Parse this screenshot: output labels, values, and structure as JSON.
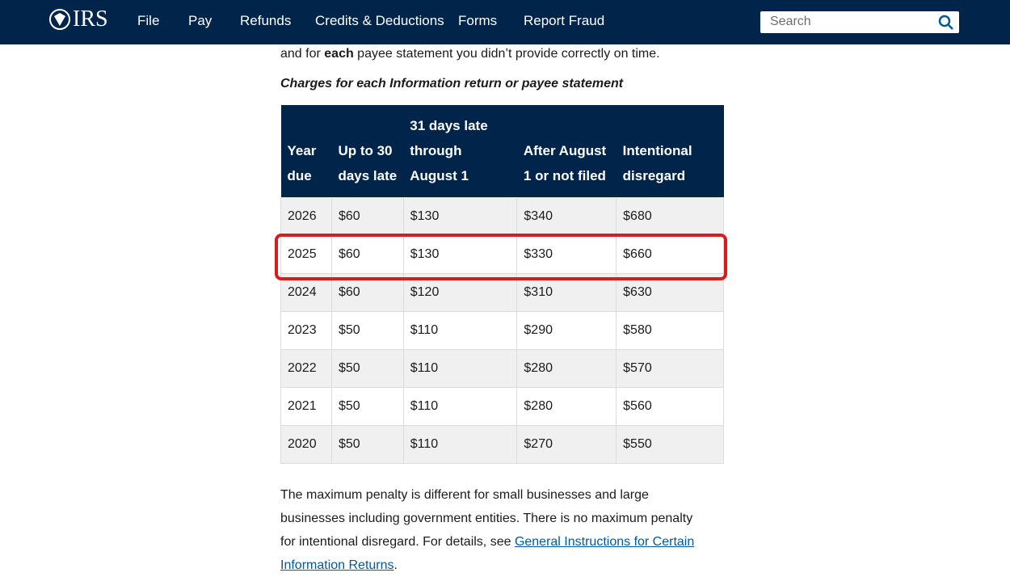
{
  "nav": {
    "logo": "IRS",
    "links": [
      "File",
      "Pay",
      "Refunds",
      "Credits & Deductions",
      "Forms",
      "Report Fraud"
    ],
    "search_placeholder": "Search"
  },
  "intro": {
    "before": "and for ",
    "bold": "each",
    "after": " payee statement you didn’t provide correctly on time."
  },
  "caption": "Charges for each Information return or payee statement",
  "table": {
    "header": [
      "Year due",
      "Up to 30 days late",
      "31 days late through August 1",
      "After August 1 or not filed",
      "Intentional disregard"
    ],
    "rows": [
      [
        "2026",
        "$60",
        "$130",
        "$340",
        "$680"
      ],
      [
        "2025",
        "$60",
        "$130",
        "$330",
        "$660"
      ],
      [
        "2024",
        "$60",
        "$120",
        "$310",
        "$630"
      ],
      [
        "2023",
        "$50",
        "$110",
        "$290",
        "$580"
      ],
      [
        "2022",
        "$50",
        "$110",
        "$280",
        "$570"
      ],
      [
        "2021",
        "$50",
        "$110",
        "$280",
        "$560"
      ],
      [
        "2020",
        "$50",
        "$110",
        "$270",
        "$550"
      ]
    ]
  },
  "footer_text": {
    "before": "The maximum penalty is different for small businesses and large businesses including government entities. There is no maximum penalty for intentional disregard. For details, see ",
    "link": "General Instructions for Certain Information Returns",
    "after": "."
  }
}
